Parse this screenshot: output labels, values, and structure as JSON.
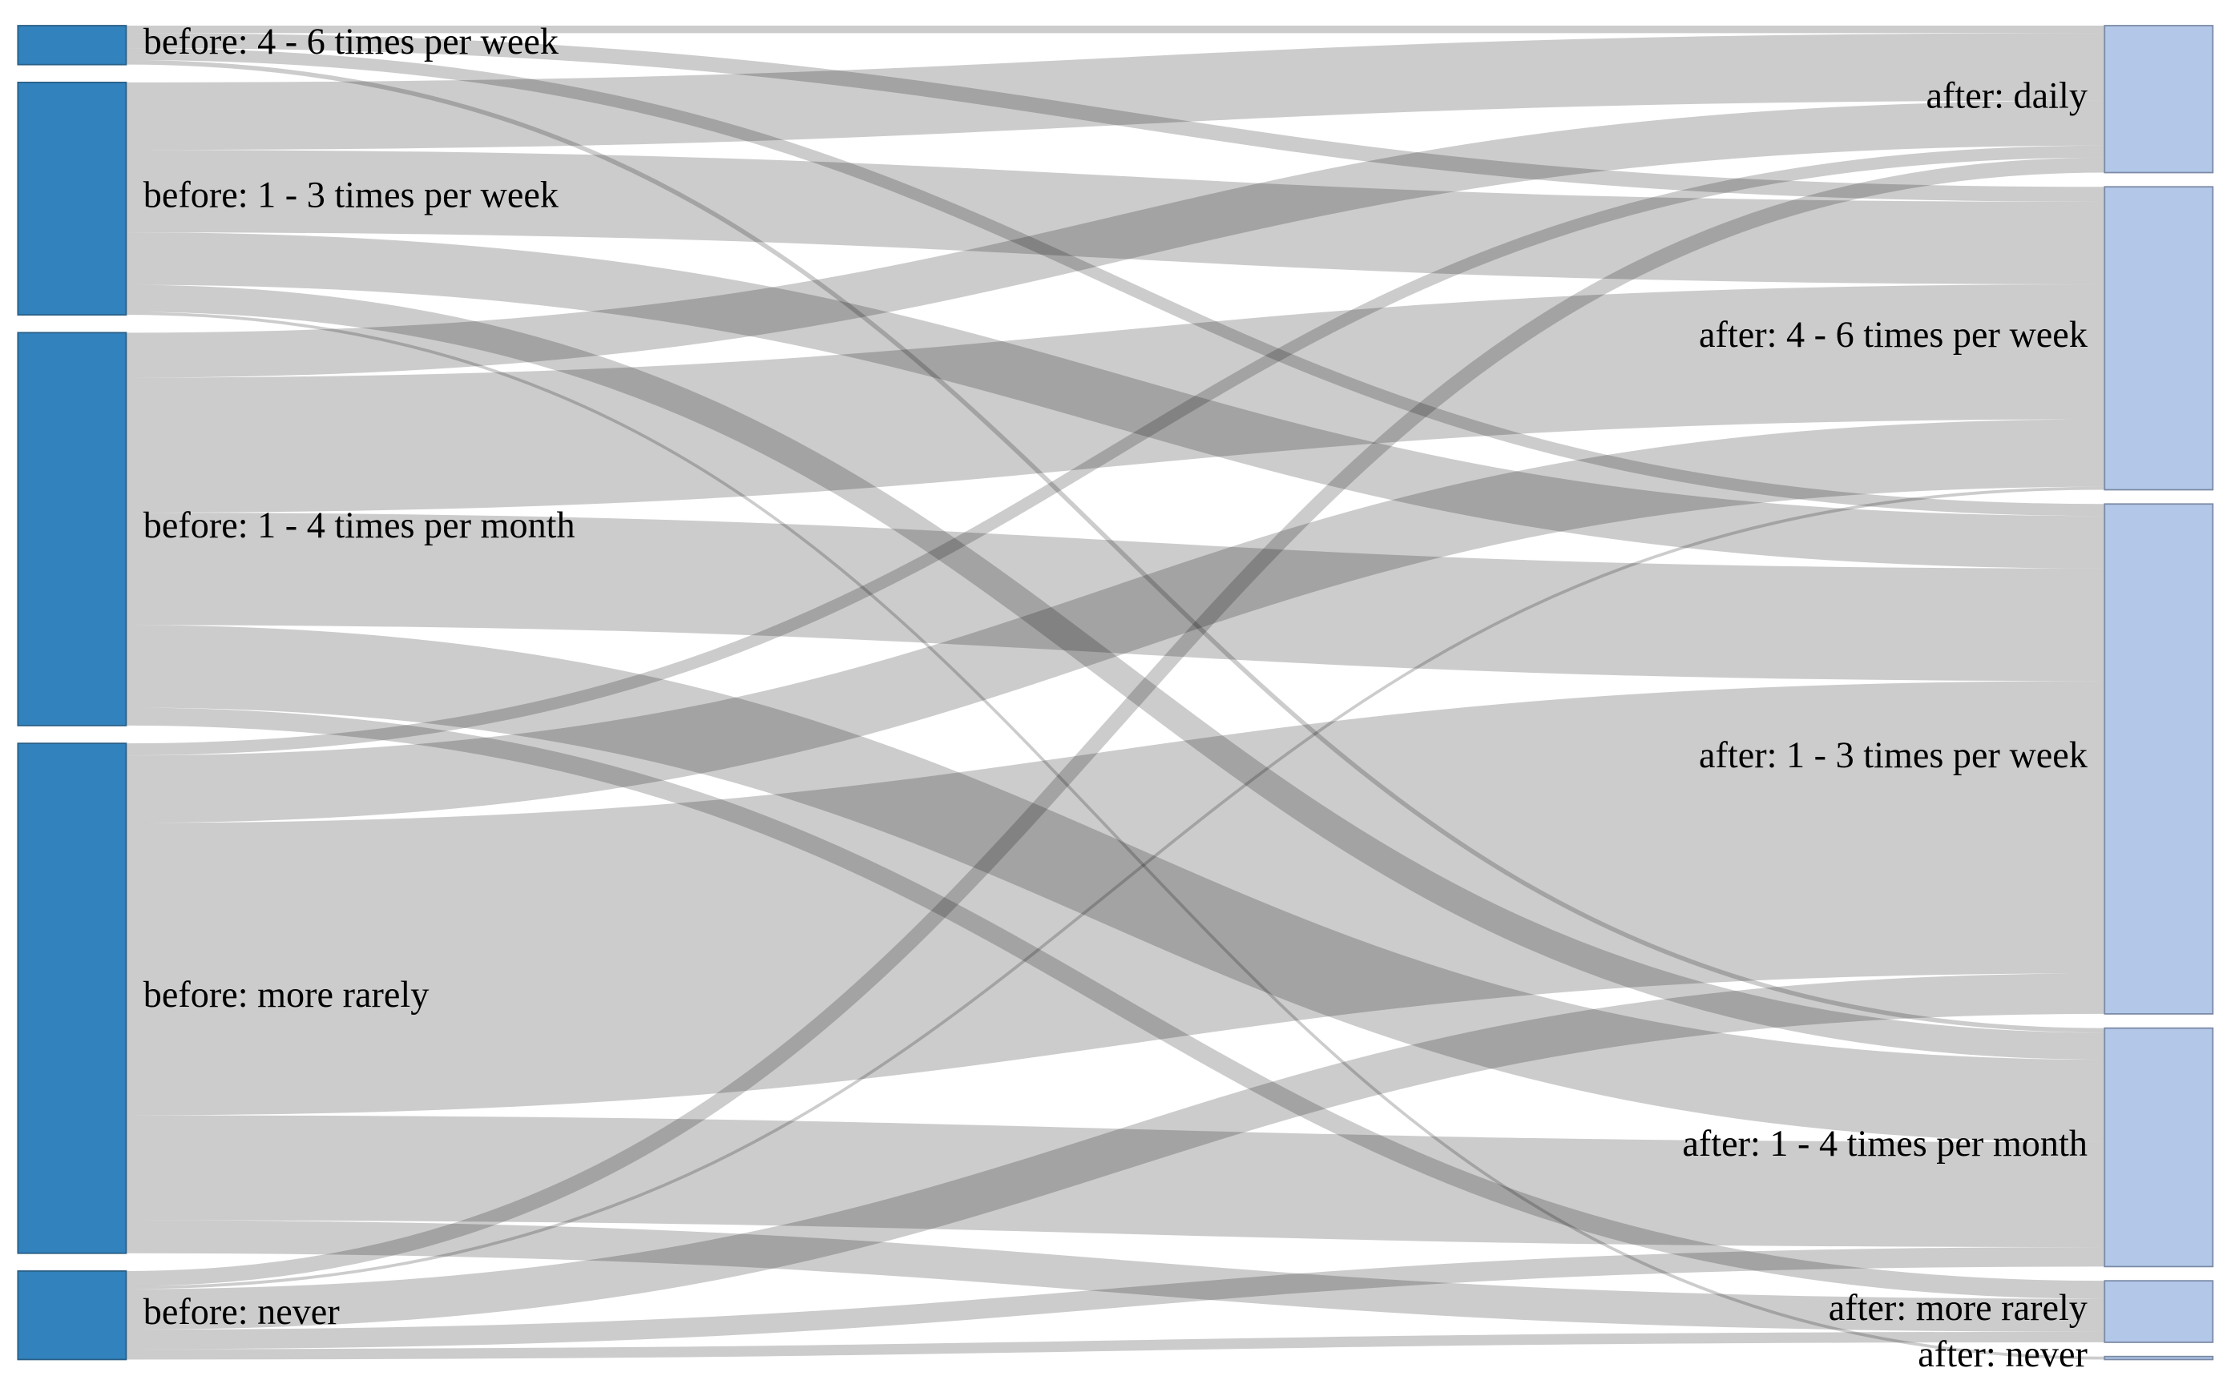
{
  "chart_data": {
    "type": "sankey",
    "sources": [
      "before: 4 - 6 times per week",
      "before: 1 - 3 times per week",
      "before: 1 - 4 times per month",
      "before: more rarely",
      "before: never"
    ],
    "targets": [
      "after: daily",
      "after: 4 - 6 times per week",
      "after: 1 - 3 times per week",
      "after: 1 - 4 times per month",
      "after: more rarely",
      "after: never"
    ],
    "values": [
      [
        5,
        10,
        8,
        3,
        0,
        0
      ],
      [
        45,
        55,
        35,
        18,
        0,
        2
      ],
      [
        30,
        90,
        75,
        55,
        12,
        0
      ],
      [
        8,
        45,
        195,
        70,
        22,
        0
      ],
      [
        10,
        2,
        27,
        13,
        7,
        0
      ]
    ],
    "source_color": "#3182bd",
    "target_color": "#b3c8e9",
    "link_color": "#000000"
  }
}
